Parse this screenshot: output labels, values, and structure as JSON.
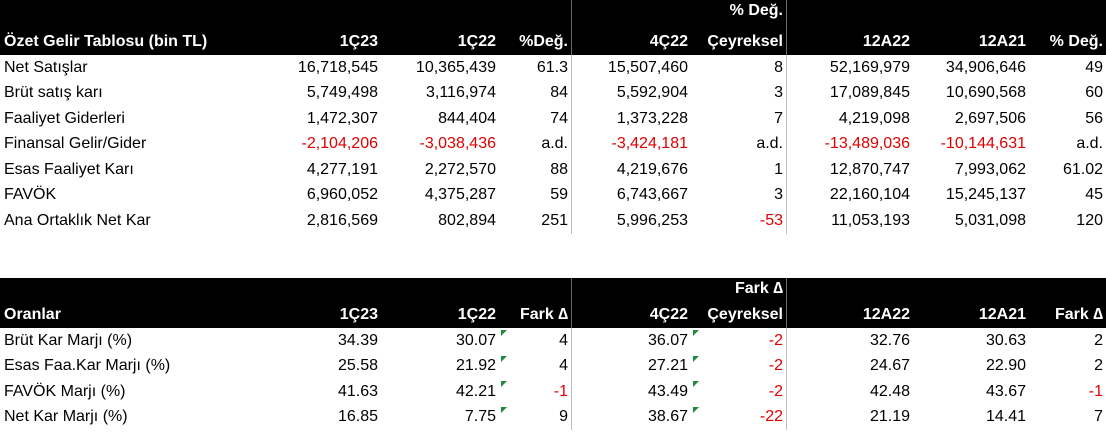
{
  "summary": {
    "header_top": {
      "pct_change": "% Değ."
    },
    "headers": [
      "Özet Gelir Tablosu (bin TL)",
      "1Ç23",
      "1Ç22",
      "%Değ.",
      "4Ç22",
      "Çeyreksel",
      "12A22",
      "12A21",
      "% Değ."
    ],
    "rows": [
      {
        "cells": [
          "Net Satışlar",
          "16,718,545",
          "10,365,439",
          "61.3",
          "15,507,460",
          "8",
          "52,169,979",
          "34,906,646",
          "49"
        ],
        "negative": []
      },
      {
        "cells": [
          "Brüt satış karı",
          "5,749,498",
          "3,116,974",
          "84",
          "5,592,904",
          "3",
          "17,089,845",
          "10,690,568",
          "60"
        ],
        "negative": []
      },
      {
        "cells": [
          "Faaliyet Giderleri",
          "1,472,307",
          "844,404",
          "74",
          "1,373,228",
          "7",
          "4,219,098",
          "2,697,506",
          "56"
        ],
        "negative": []
      },
      {
        "cells": [
          "Finansal Gelir/Gider",
          "-2,104,206",
          "-3,038,436",
          "a.d.",
          "-3,424,181",
          "a.d.",
          "-13,489,036",
          "-10,144,631",
          "a.d."
        ],
        "negative": [
          1,
          2,
          4,
          6,
          7
        ]
      },
      {
        "cells": [
          "Esas Faaliyet Karı",
          "4,277,191",
          "2,272,570",
          "88",
          "4,219,676",
          "1",
          "12,870,747",
          "7,993,062",
          "61.02"
        ],
        "negative": []
      },
      {
        "cells": [
          "FAVÖK",
          "6,960,052",
          "4,375,287",
          "59",
          "6,743,667",
          "3",
          "22,160,104",
          "15,245,137",
          "45"
        ],
        "negative": []
      },
      {
        "cells": [
          "Ana Ortaklık Net Kar",
          "2,816,569",
          "802,894",
          "251",
          "5,996,253",
          "-53",
          "11,053,193",
          "5,031,098",
          "120"
        ],
        "negative": [
          5
        ]
      }
    ]
  },
  "ratios": {
    "header_top": {
      "diff": "Fark ∆"
    },
    "headers": [
      "Oranlar",
      "1Ç23",
      "1Ç22",
      "Fark ∆",
      "4Ç22",
      "Çeyreksel",
      "12A22",
      "12A21",
      "Fark ∆"
    ],
    "rows": [
      {
        "cells": [
          "Brüt Kar Marjı (%)",
          "34.39",
          "30.07",
          "4",
          "36.07",
          "-2",
          "32.76",
          "30.63",
          "2"
        ],
        "negative": [
          5
        ]
      },
      {
        "cells": [
          "Esas Faa.Kar Marjı (%)",
          "25.58",
          "21.92",
          "4",
          "27.21",
          "-2",
          "24.67",
          "22.90",
          "2"
        ],
        "negative": [
          5
        ]
      },
      {
        "cells": [
          "FAVÖK Marjı (%)",
          "41.63",
          "42.21",
          "-1",
          "43.49",
          "-2",
          "42.48",
          "43.67",
          "-1"
        ],
        "negative": [
          3,
          5,
          8
        ]
      },
      {
        "cells": [
          "Net Kar Marjı (%)",
          "16.85",
          "7.75",
          "9",
          "38.67",
          "-22",
          "21.19",
          "14.41",
          "7"
        ],
        "negative": [
          5
        ]
      }
    ]
  },
  "colors": {
    "header_bg": "#000000",
    "negative": "#e00000",
    "comment_marker": "#1f8c3b"
  }
}
